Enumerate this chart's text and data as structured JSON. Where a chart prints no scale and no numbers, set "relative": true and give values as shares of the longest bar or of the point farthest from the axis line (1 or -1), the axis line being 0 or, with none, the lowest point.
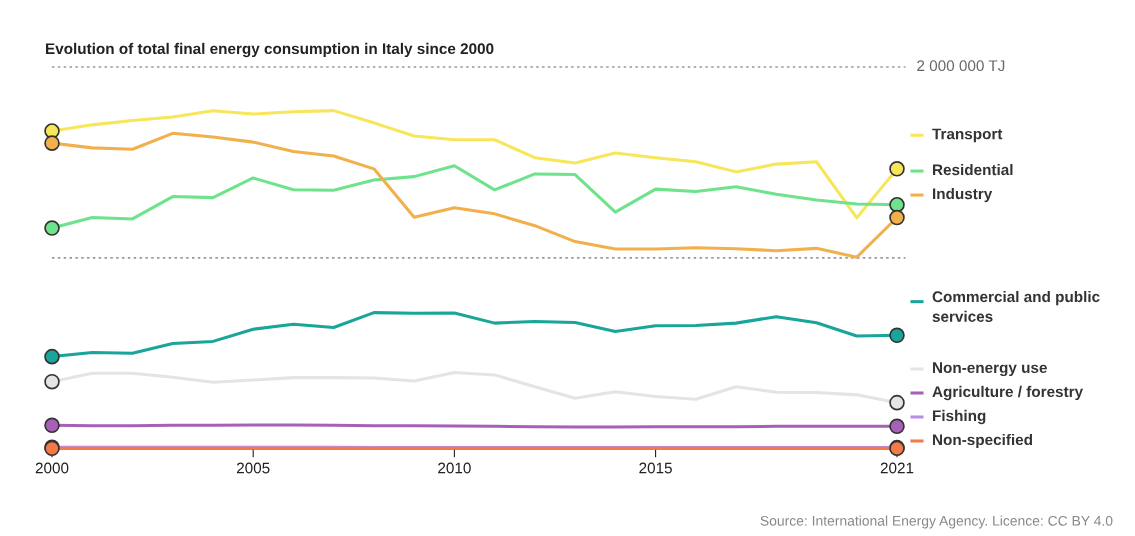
{
  "chart_data": {
    "type": "line",
    "title": "Evolution of total final energy consumption in Italy since 2000",
    "x": [
      2000,
      2001,
      2002,
      2003,
      2004,
      2005,
      2006,
      2007,
      2008,
      2009,
      2010,
      2011,
      2012,
      2013,
      2014,
      2015,
      2016,
      2017,
      2018,
      2019,
      2020,
      2021
    ],
    "xlim": [
      2000,
      2021
    ],
    "xticks": [
      2000,
      2005,
      2010,
      2015,
      2021
    ],
    "relative": true,
    "ref_lines": [
      {
        "axis": "y",
        "value": 1.129,
        "label": "2 000 000 TJ",
        "line_style": "dotted",
        "color": "#999999"
      },
      {
        "axis": "y",
        "value": 0.565,
        "line_style": "dotted",
        "color": "#999999"
      }
    ],
    "legend": "right",
    "line_style": "solid",
    "series": [
      {
        "name": "Transport",
        "color": "#f7e65a",
        "values": [
          0.94,
          0.958,
          0.971,
          0.981,
          1,
          0.99,
          0.997,
          1,
          0.964,
          0.925,
          0.914,
          0.914,
          0.861,
          0.845,
          0.875,
          0.861,
          0.849,
          0.819,
          0.842,
          0.849,
          0.683,
          0.828
        ]
      },
      {
        "name": "Residential",
        "color": "#6ee38c",
        "values": [
          0.653,
          0.684,
          0.68,
          0.746,
          0.743,
          0.801,
          0.766,
          0.765,
          0.795,
          0.805,
          0.837,
          0.766,
          0.813,
          0.811,
          0.7,
          0.768,
          0.761,
          0.775,
          0.753,
          0.736,
          0.724,
          0.722
        ]
      },
      {
        "name": "Industry",
        "color": "#f2b04c",
        "values": [
          0.904,
          0.89,
          0.886,
          0.933,
          0.922,
          0.907,
          0.879,
          0.866,
          0.828,
          0.685,
          0.713,
          0.695,
          0.66,
          0.613,
          0.591,
          0.591,
          0.595,
          0.592,
          0.586,
          0.593,
          0.567,
          0.684
        ]
      },
      {
        "name": "Commercial and public services",
        "color": "#1aa59a",
        "values": [
          0.273,
          0.285,
          0.283,
          0.312,
          0.318,
          0.354,
          0.369,
          0.359,
          0.403,
          0.401,
          0.402,
          0.372,
          0.377,
          0.374,
          0.347,
          0.364,
          0.365,
          0.372,
          0.391,
          0.373,
          0.334,
          0.336
        ]
      },
      {
        "name": "Non-energy use",
        "color": "#e4e4e4",
        "values": [
          0.199,
          0.224,
          0.224,
          0.212,
          0.197,
          0.204,
          0.211,
          0.211,
          0.21,
          0.201,
          0.226,
          0.219,
          0.184,
          0.15,
          0.169,
          0.155,
          0.147,
          0.184,
          0.168,
          0.167,
          0.16,
          0.137
        ]
      },
      {
        "name": "Agriculture / forestry",
        "color": "#a660b8",
        "values": [
          0.07,
          0.069,
          0.069,
          0.07,
          0.07,
          0.071,
          0.071,
          0.07,
          0.069,
          0.069,
          0.068,
          0.067,
          0.066,
          0.065,
          0.065,
          0.066,
          0.066,
          0.066,
          0.067,
          0.067,
          0.067,
          0.067
        ]
      },
      {
        "name": "Fishing",
        "color": "#b88ee6",
        "values": [
          0.005,
          0.005,
          0.005,
          0.005,
          0.005,
          0.005,
          0.005,
          0.005,
          0.0045,
          0.0045,
          0.0045,
          0.0045,
          0.0045,
          0.004,
          0.004,
          0.004,
          0.004,
          0.004,
          0.004,
          0.004,
          0.004,
          0.004
        ]
      },
      {
        "name": "Non-specified",
        "color": "#f47a4a",
        "values": [
          0.002,
          0.002,
          0.002,
          0.002,
          0.002,
          0.002,
          0.002,
          0.002,
          0.002,
          0.002,
          0.002,
          0.002,
          0.002,
          0.002,
          0.002,
          0.002,
          0.002,
          0.002,
          0.002,
          0.002,
          0.002,
          0.002
        ]
      }
    ],
    "annotations": [
      "Source: International Energy Agency. Licence: CC BY 4.0"
    ]
  }
}
